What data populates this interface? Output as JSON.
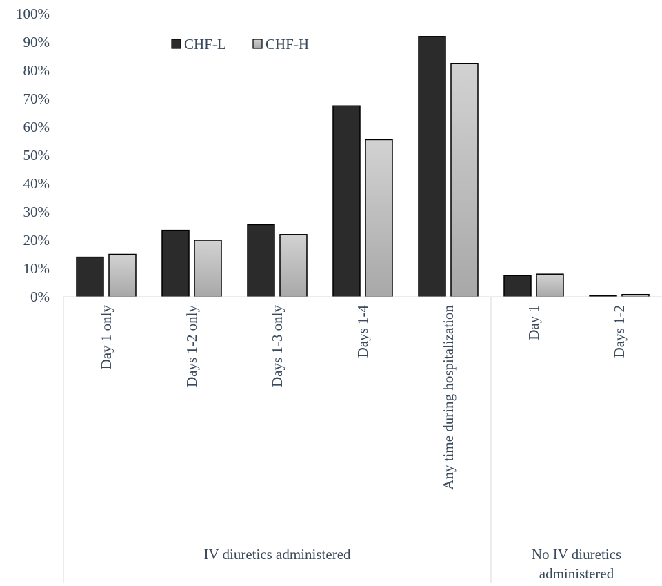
{
  "chart_data": {
    "type": "bar",
    "ylim": [
      0,
      100
    ],
    "yticks": [
      "0%",
      "10%",
      "20%",
      "30%",
      "40%",
      "50%",
      "60%",
      "70%",
      "80%",
      "90%",
      "100%"
    ],
    "categories": [
      "Day 1 only",
      "Days 1-2 only",
      "Days 1-3 only",
      "Days 1-4",
      "Any time during hospitalization",
      "Day 1",
      "Days 1-2"
    ],
    "groups": [
      {
        "label": "IV diuretics administered",
        "categories": 5
      },
      {
        "label": "No IV diuretics administered",
        "categories": 2
      }
    ],
    "series": [
      {
        "name": "CHF-L",
        "color": "#2b2b2b",
        "values": [
          14,
          23.5,
          25.5,
          67.5,
          92,
          7.5,
          0.3
        ]
      },
      {
        "name": "CHF-H",
        "color": "#c4c4c4",
        "values": [
          15,
          20,
          22,
          55.5,
          82.5,
          8,
          0.8
        ]
      }
    ],
    "legend_position": "top-left",
    "grid": false
  }
}
